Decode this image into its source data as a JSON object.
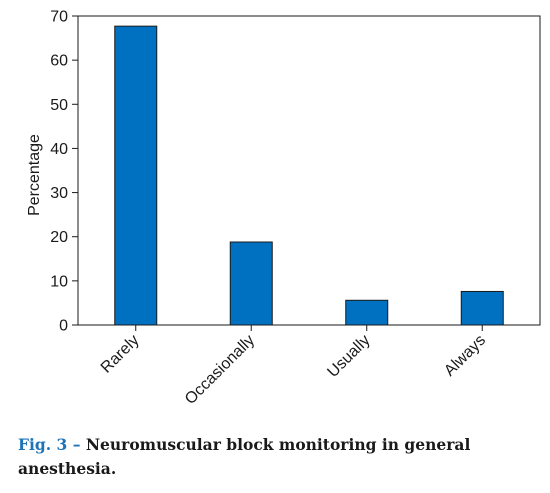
{
  "chart_data": {
    "type": "bar",
    "categories": [
      "Rarely",
      "Occasionally",
      "Usually",
      "Always"
    ],
    "values": [
      67.7,
      18.8,
      5.6,
      7.6
    ],
    "xlabel": "",
    "ylabel": "Percentage",
    "ylim": [
      0,
      70
    ],
    "yticks": [
      0,
      10,
      20,
      30,
      40,
      50,
      60,
      70
    ],
    "bar_color": "#0070c0",
    "grid": false,
    "legend": "none"
  },
  "caption": {
    "label": "Fig. 3 –",
    "text": "Neuromuscular block monitoring in general anesthesia."
  }
}
